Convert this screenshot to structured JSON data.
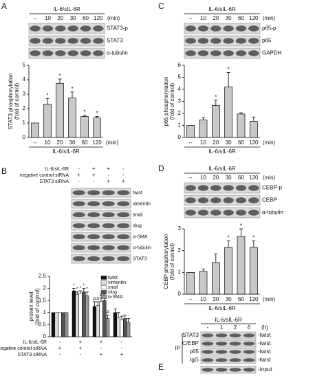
{
  "chart_data": [
    {
      "panel": "A",
      "type": "bar",
      "categories": [
        "--",
        "10",
        "20",
        "30",
        "60",
        "120"
      ],
      "values": [
        1,
        2.3,
        3.75,
        2.75,
        1.45,
        1.35
      ],
      "errors": [
        0,
        0.4,
        0.3,
        0.4,
        0.1,
        0.1
      ],
      "marks": [
        null,
        "*",
        "*",
        "*",
        "*",
        "*"
      ],
      "color": "#c8c8c8",
      "ylim": [
        0,
        5
      ],
      "yticks": [
        0,
        1,
        2,
        3,
        4,
        5
      ],
      "y_label": [
        "STAT3 phosphorylation",
        "(fold of control)"
      ],
      "x_label": "IL-6/sIL-6R",
      "x_unit": "(min)"
    },
    {
      "panel": "C",
      "type": "bar",
      "categories": [
        "--",
        "10",
        "20",
        "30",
        "60",
        "120"
      ],
      "values": [
        1,
        1.45,
        2.65,
        4.2,
        1.95,
        1.35
      ],
      "errors": [
        0,
        0.2,
        0.45,
        1.2,
        0.1,
        0.35
      ],
      "marks": [
        null,
        null,
        "*",
        "*",
        null,
        null
      ],
      "color": "#c8c8c8",
      "ylim": [
        0,
        6
      ],
      "yticks": [
        0,
        1,
        2,
        3,
        4,
        5,
        6
      ],
      "y_label": [
        "p65 phosphorylation",
        "(fold of control)"
      ],
      "x_label": "IL-6/sIL-6R",
      "x_unit": "(min)"
    },
    {
      "panel": "B",
      "type": "grouped-bar",
      "series": [
        {
          "name": "twist",
          "color": "#111111",
          "values": [
            1,
            1.9,
            1.25,
            1.0
          ],
          "errors": [
            0,
            0.1,
            0.2,
            0.15
          ],
          "marks": [
            null,
            "*",
            "#",
            null
          ]
        },
        {
          "name": "vimentin",
          "color": "#dddddd",
          "values": [
            1,
            1.75,
            1.3,
            0.8
          ],
          "errors": [
            0,
            0.1,
            0.15,
            0.2
          ],
          "marks": [
            null,
            "*",
            "#",
            null
          ]
        },
        {
          "name": "snail",
          "color": "#ffffff",
          "values": [
            1,
            1.8,
            1.45,
            0.7
          ],
          "errors": [
            0,
            0.1,
            0.15,
            0.15
          ],
          "marks": [
            null,
            "*",
            "#",
            null
          ]
        },
        {
          "name": "slug",
          "color": "#555555",
          "values": [
            1,
            1.85,
            1.5,
            0.75
          ],
          "errors": [
            0,
            0.15,
            0.15,
            0.15
          ],
          "marks": [
            null,
            "*",
            "#",
            null
          ]
        },
        {
          "name": "α-SMA",
          "color": "#999999",
          "values": [
            1,
            1.7,
            0.75,
            0.6
          ],
          "errors": [
            0,
            0.15,
            0.15,
            0.15
          ],
          "marks": [
            null,
            "*",
            "#",
            null
          ]
        }
      ],
      "ylim": [
        0,
        2.5
      ],
      "yticks": [
        0,
        0.5,
        1,
        1.5,
        2,
        2.5
      ],
      "y_label": [
        "protein level",
        "(fold of control)"
      ]
    },
    {
      "panel": "D",
      "type": "bar",
      "categories": [
        "--",
        "10",
        "20",
        "30",
        "60",
        "120"
      ],
      "values": [
        1,
        1.05,
        1.45,
        2.15,
        2.65,
        2.15
      ],
      "errors": [
        0,
        0.1,
        0.4,
        0.3,
        0.35,
        0.3
      ],
      "marks": [
        null,
        null,
        null,
        "*",
        "*",
        "*"
      ],
      "color": "#c8c8c8",
      "ylim": [
        0,
        3
      ],
      "yticks": [
        0,
        1,
        2,
        3
      ],
      "y_label": [
        "CEBP phosphorylation",
        "(fold of control)"
      ],
      "x_label": "IL-6/sIL-6R",
      "x_unit": "(min)"
    }
  ],
  "blots": {
    "A": {
      "header": "IL-6/sIL-6R",
      "lanes": [
        "--",
        "10",
        "20",
        "30",
        "60",
        "120"
      ],
      "unit": "(min)",
      "bands": [
        "STAT3-p",
        "STAT3",
        "α-tubulin"
      ]
    },
    "C": {
      "header": "IL-6/sIL-6R",
      "lanes": [
        "--",
        "10",
        "20",
        "30",
        "60",
        "120"
      ],
      "unit": "(min)",
      "bands": [
        "p65-p",
        "p65",
        "GAPDH"
      ]
    },
    "B": {
      "treatments": [
        {
          "name": "IL-6/sIL-6R",
          "signs": [
            "-",
            "+",
            "+",
            "-"
          ]
        },
        {
          "name": "negative control siRNA",
          "signs": [
            "+",
            "+",
            "-",
            "-"
          ]
        },
        {
          "name": "STAT3 siRNA",
          "signs": [
            "-",
            "-",
            "+",
            "+"
          ]
        }
      ],
      "bands": [
        "twist",
        "vimentin",
        "snail",
        "slug",
        "α-SMA",
        "α-tubulin",
        "STAT3"
      ]
    },
    "D": {
      "header": "IL-6/sIL-6R",
      "lanes": [
        "--",
        "10",
        "20",
        "30",
        "60",
        "120"
      ],
      "unit": "(min)",
      "bands": [
        "CEBP-p",
        "CEBP",
        "α-tubulin"
      ]
    },
    "E": {
      "panel": "E",
      "header": "IL-6/sIL-6R",
      "lanes": [
        "-",
        "1",
        "2",
        "6"
      ],
      "unit": "(h)",
      "ip_label": "IP",
      "rows": [
        {
          "label": "STAT3",
          "target": "-twist"
        },
        {
          "label": "C/EBP",
          "target": "-twist"
        },
        {
          "label": "p65",
          "target": "-twist"
        },
        {
          "label": "IgG",
          "target": "-twist"
        }
      ],
      "input": "-Input"
    }
  }
}
